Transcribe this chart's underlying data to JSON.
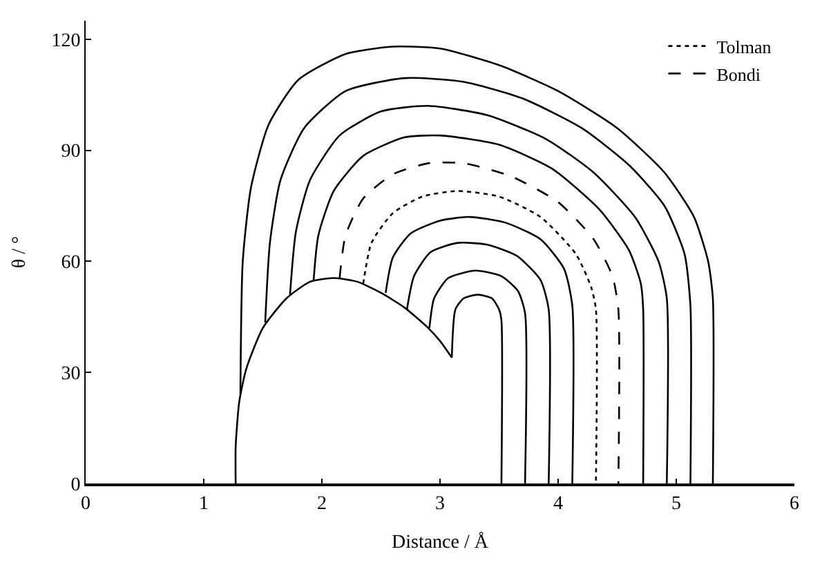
{
  "chart_data": {
    "type": "line",
    "xlabel": "Distance / Å",
    "ylabel": "θ / °",
    "xlim": [
      0,
      6
    ],
    "xticks": [
      0,
      1,
      2,
      3,
      4,
      5,
      6
    ],
    "ylim": [
      0,
      125
    ],
    "yticks": [
      0,
      30,
      60,
      90,
      120
    ],
    "legend": "top right",
    "marker": "none",
    "series": [
      {
        "color": "#000000",
        "line_style": "solid",
        "x": [
          1.27,
          1.27,
          1.3,
          1.36,
          1.5,
          1.7,
          1.9,
          2.1,
          2.3,
          2.5,
          2.7,
          2.9,
          3.0,
          3.1
        ],
        "values": [
          0,
          10,
          22,
          31,
          42,
          50,
          54.5,
          55.5,
          54.5,
          51.5,
          47.5,
          42,
          38.5,
          34
        ]
      },
      {
        "color": "#000000",
        "line_style": "solid",
        "x": [
          3.1,
          3.13,
          3.2,
          3.32,
          3.44,
          3.5,
          3.52,
          3.52
        ],
        "values": [
          34,
          47,
          50,
          51,
          50,
          47,
          44,
          0
        ]
      },
      {
        "color": "#000000",
        "line_style": "solid",
        "x": [
          2.91,
          2.95,
          3.07,
          3.3,
          3.52,
          3.66,
          3.72,
          3.72
        ],
        "values": [
          42,
          50,
          55.5,
          57.5,
          56,
          52,
          46,
          0
        ]
      },
      {
        "color": "#000000",
        "line_style": "solid",
        "x": [
          2.72,
          2.78,
          2.92,
          3.15,
          3.4,
          3.65,
          3.85,
          3.92,
          3.92
        ],
        "values": [
          47,
          56,
          62.5,
          65,
          64.5,
          61.5,
          55,
          47,
          0
        ]
      },
      {
        "color": "#000000",
        "line_style": "solid",
        "x": [
          2.54,
          2.6,
          2.75,
          3.0,
          3.25,
          3.55,
          3.85,
          4.05,
          4.12,
          4.12
        ],
        "values": [
          51.5,
          61,
          67.5,
          71,
          72,
          70.5,
          66,
          58,
          48,
          0
        ]
      },
      {
        "name": "Tolman",
        "color": "#000000",
        "line_style": "dotted",
        "x": [
          2.35,
          2.42,
          2.6,
          2.85,
          3.15,
          3.5,
          3.85,
          4.15,
          4.28,
          4.32,
          4.32
        ],
        "values": [
          54,
          65,
          73,
          77.5,
          79,
          77.5,
          72,
          62,
          53,
          47,
          0
        ]
      },
      {
        "name": "Bondi",
        "color": "#000000",
        "line_style": "dashed",
        "x": [
          2.15,
          2.2,
          2.35,
          2.6,
          2.9,
          3.2,
          3.6,
          4.0,
          4.3,
          4.46,
          4.51,
          4.51
        ],
        "values": [
          55.5,
          67,
          77,
          83.5,
          86.5,
          86.5,
          83,
          76,
          66,
          56,
          47,
          0
        ]
      },
      {
        "color": "#000000",
        "line_style": "solid",
        "x": [
          1.93,
          1.97,
          2.1,
          2.35,
          2.7,
          3.0,
          3.5,
          3.95,
          4.35,
          4.6,
          4.7,
          4.72,
          4.72
        ],
        "values": [
          55,
          67,
          79,
          88.5,
          93.5,
          94,
          91.5,
          85,
          74,
          63,
          54,
          47,
          0
        ]
      },
      {
        "color": "#000000",
        "line_style": "solid",
        "x": [
          1.73,
          1.78,
          1.9,
          2.15,
          2.5,
          2.9,
          3.4,
          3.9,
          4.3,
          4.65,
          4.85,
          4.92,
          4.92
        ],
        "values": [
          51,
          68,
          82,
          94,
          100.5,
          102,
          99.5,
          93,
          84,
          72,
          60,
          50,
          0
        ]
      },
      {
        "color": "#000000",
        "line_style": "solid",
        "x": [
          1.52,
          1.56,
          1.65,
          1.85,
          2.2,
          2.7,
          3.2,
          3.7,
          4.2,
          4.6,
          4.9,
          5.07,
          5.12,
          5.12
        ],
        "values": [
          43.5,
          65,
          82,
          96,
          106,
          109.5,
          108.5,
          104,
          96,
          86,
          75,
          62,
          48,
          0
        ]
      },
      {
        "color": "#000000",
        "line_style": "solid",
        "x": [
          1.31,
          1.33,
          1.4,
          1.55,
          1.8,
          2.2,
          2.6,
          3.0,
          3.5,
          4.0,
          4.5,
          4.9,
          5.15,
          5.27,
          5.31,
          5.31
        ],
        "values": [
          24,
          60,
          80,
          97,
          109,
          116,
          118,
          117.5,
          113,
          106,
          96,
          84,
          72,
          60,
          50,
          0
        ]
      }
    ]
  }
}
